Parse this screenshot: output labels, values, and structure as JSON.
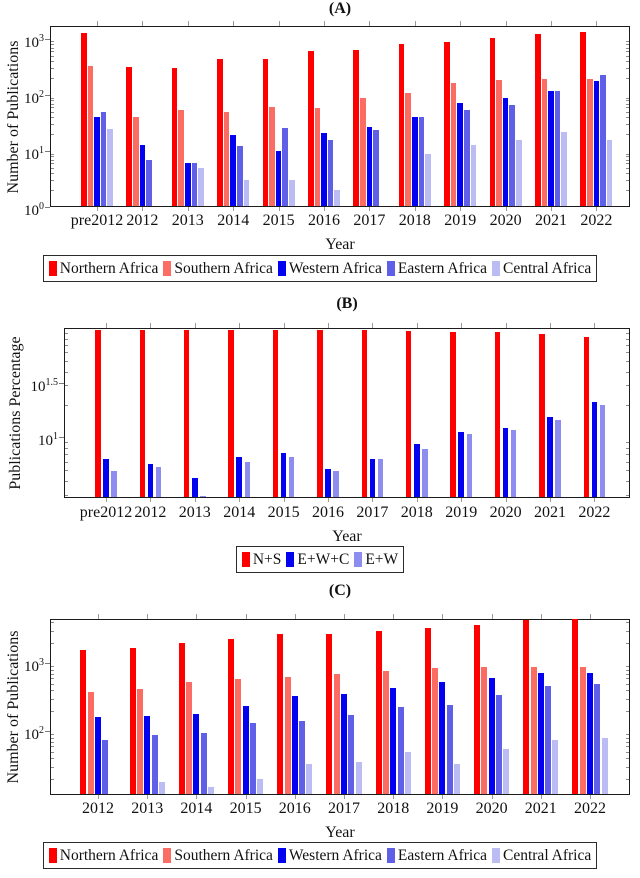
{
  "chart_data": [
    {
      "id": "A",
      "type": "bar",
      "title": "(A)",
      "ylabel": "Number of Publications",
      "xlabel": "Year",
      "yscale": "log",
      "grid": false,
      "legend_position": "bottom",
      "categories": [
        "pre2012",
        "2012",
        "2013",
        "2014",
        "2015",
        "2016",
        "2017",
        "2018",
        "2019",
        "2020",
        "2021",
        "2022"
      ],
      "series": [
        {
          "name": "Northern Africa",
          "color": "#fe0000",
          "values": [
            1280,
            315,
            300,
            430,
            430,
            620,
            640,
            815,
            890,
            1050,
            1230,
            1340
          ]
        },
        {
          "name": "Southern Africa",
          "color": "#fb6d62",
          "values": [
            330,
            41,
            54,
            50,
            62,
            58,
            88,
            110,
            165,
            185,
            195,
            190
          ]
        },
        {
          "name": "Western Africa",
          "color": "#0202f0",
          "values": [
            41,
            13,
            6.2,
            19,
            10,
            21,
            27,
            41,
            73,
            89,
            118,
            175
          ]
        },
        {
          "name": "Eastern Africa",
          "color": "#5f5fe8",
          "values": [
            50,
            7,
            6,
            12.5,
            26,
            16,
            24,
            41,
            54,
            66,
            116,
            225
          ]
        },
        {
          "name": "Central Africa",
          "color": "#bcbcf5",
          "values": [
            25,
            1,
            5,
            3,
            3,
            2,
            1,
            9,
            13,
            16,
            22,
            16
          ]
        }
      ],
      "ylim": [
        1,
        1700
      ],
      "yticks": [
        {
          "label": "10^0",
          "value": 1
        },
        {
          "label": "10^1",
          "value": 10
        },
        {
          "label": "10^2",
          "value": 100
        },
        {
          "label": "10^3",
          "value": 1000
        }
      ]
    },
    {
      "id": "B",
      "type": "bar",
      "title": "(B)",
      "ylabel": "Publications Percentage",
      "xlabel": "Year",
      "yscale": "log",
      "grid": false,
      "legend_position": "bottom",
      "categories": [
        "pre2012",
        "2012",
        "2013",
        "2014",
        "2015",
        "2016",
        "2017",
        "2018",
        "2019",
        "2020",
        "2021",
        "2022"
      ],
      "series": [
        {
          "name": "N+S",
          "color": "#fe0000",
          "values": [
            95.5,
            95.5,
            96,
            95.5,
            95,
            95.5,
            95.5,
            93.5,
            92,
            91,
            88,
            82
          ]
        },
        {
          "name": "E+W+C",
          "color": "#0202f0",
          "values": [
            6.3,
            5.7,
            4.3,
            6.6,
            7.2,
            5.2,
            6.4,
            8.8,
            11.3,
            12.3,
            15.5,
            21
          ]
        },
        {
          "name": "E+W",
          "color": "#8d8df0",
          "values": [
            4.9,
            5.4,
            2.9,
            6.0,
            6.6,
            4.9,
            6.3,
            7.8,
            10.8,
            11.6,
            14.3,
            20
          ]
        }
      ],
      "ylim": [
        2.8,
        100
      ],
      "yticks": [
        {
          "label": "10^1",
          "value": 10
        },
        {
          "label": "10^1.5",
          "value": 31.62
        }
      ]
    },
    {
      "id": "C",
      "type": "bar",
      "title": "(C)",
      "ylabel": "Number of Publications",
      "xlabel": "Year",
      "yscale": "log",
      "grid": false,
      "legend_position": "bottom",
      "categories": [
        "2012",
        "2013",
        "2014",
        "2015",
        "2016",
        "2017",
        "2018",
        "2019",
        "2020",
        "2021",
        "2022"
      ],
      "series": [
        {
          "name": "Northern Africa",
          "color": "#fe0000",
          "values": [
            1550,
            1700,
            2000,
            2250,
            2700,
            2750,
            3000,
            3350,
            3700,
            4400,
            4450
          ]
        },
        {
          "name": "Southern Africa",
          "color": "#fb6d62",
          "values": [
            375,
            420,
            530,
            590,
            630,
            700,
            770,
            860,
            890,
            880,
            870
          ]
        },
        {
          "name": "Western Africa",
          "color": "#0202f0",
          "values": [
            160,
            170,
            180,
            235,
            330,
            355,
            430,
            540,
            600,
            710,
            730
          ]
        },
        {
          "name": "Eastern Africa",
          "color": "#5f5fe8",
          "values": [
            75,
            88,
            93,
            130,
            140,
            172,
            230,
            245,
            345,
            460,
            490
          ]
        },
        {
          "name": "Central Africa",
          "color": "#bcbcf5",
          "values": [
            11,
            18,
            15,
            20,
            33,
            35,
            50,
            33,
            55,
            75,
            80
          ]
        }
      ],
      "ylim": [
        11.5,
        4500
      ],
      "yticks": [
        {
          "label": "10^2",
          "value": 100
        },
        {
          "label": "10^3",
          "value": 1000
        }
      ]
    }
  ]
}
